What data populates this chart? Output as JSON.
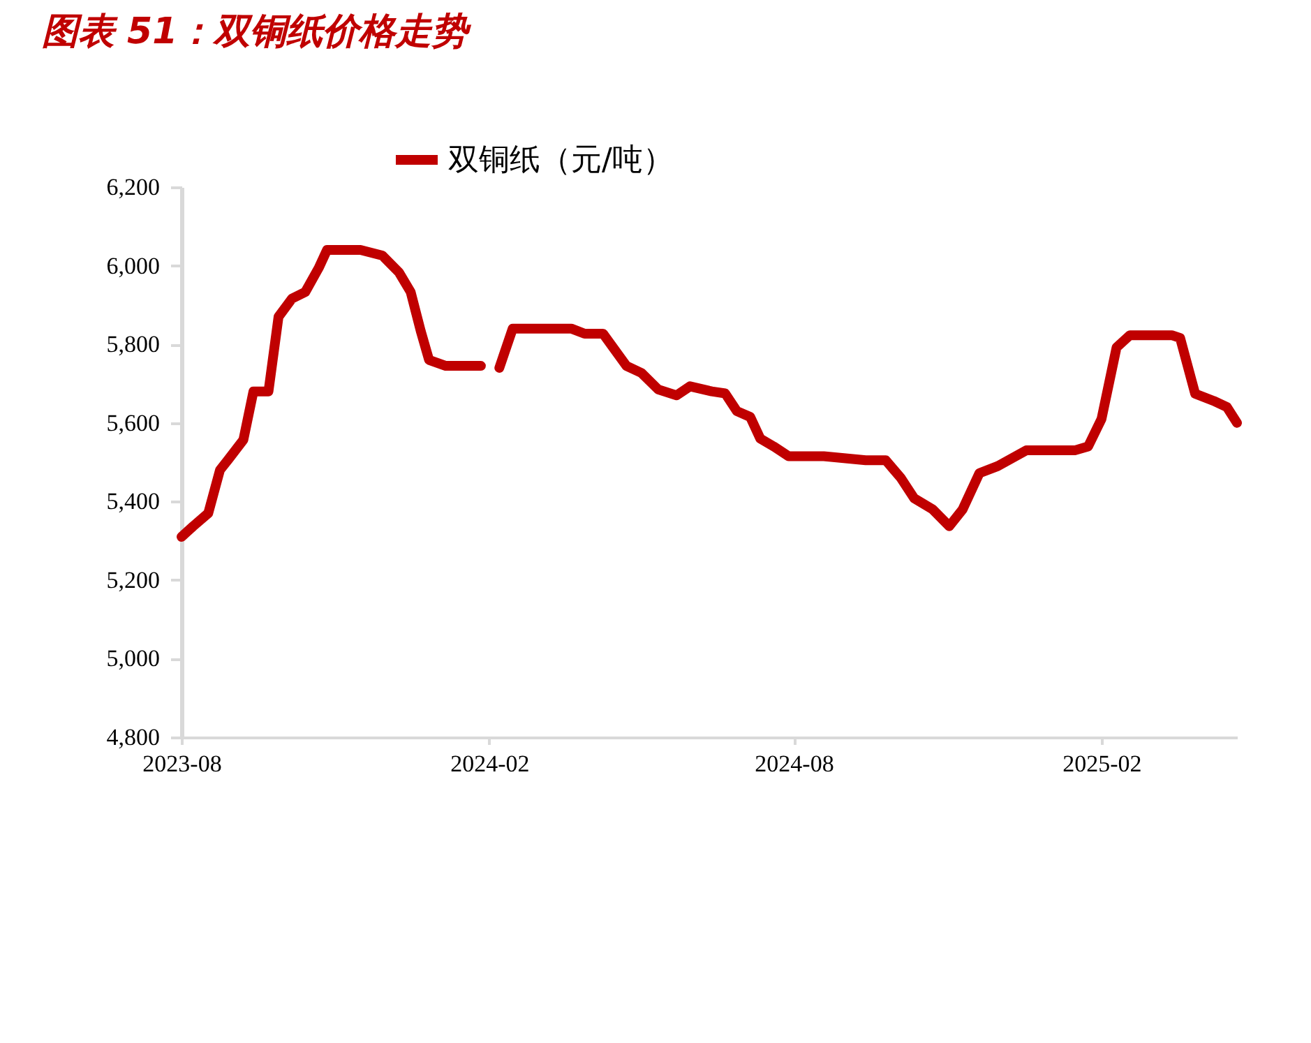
{
  "chart_data": {
    "type": "line",
    "title": "图表 51：双铜纸价格走势",
    "x": [
      "2023-08-01",
      "2023-08-08",
      "2023-08-17",
      "2023-08-24",
      "2023-08-29",
      "2023-09-07",
      "2023-09-13",
      "2023-09-22",
      "2023-09-28",
      "2023-10-06",
      "2023-10-14",
      "2023-10-22",
      "2023-10-27",
      "2023-11-16",
      "2023-11-29",
      "2023-12-09",
      "2023-12-16",
      "2023-12-22",
      "2023-12-27",
      "2024-01-06",
      "2024-01-27",
      "2024-02-01",
      "2024-02-07",
      "2024-02-15",
      "2024-03-04",
      "2024-03-21",
      "2024-03-29",
      "2024-04-09",
      "2024-04-23",
      "2024-05-02",
      "2024-05-12",
      "2024-05-23",
      "2024-05-31",
      "2024-06-13",
      "2024-06-21",
      "2024-06-28",
      "2024-07-06",
      "2024-07-12",
      "2024-07-20",
      "2024-07-29",
      "2024-08-19",
      "2024-09-13",
      "2024-09-25",
      "2024-10-04",
      "2024-10-12",
      "2024-10-23",
      "2024-11-02",
      "2024-11-10",
      "2024-11-20",
      "2024-12-01",
      "2024-12-18",
      "2025-01-16",
      "2025-01-24",
      "2025-02-01",
      "2025-02-10",
      "2025-02-18",
      "2025-03-15",
      "2025-03-20",
      "2025-03-29",
      "2025-04-09",
      "2025-04-17",
      "2025-04-23"
    ],
    "series": [
      {
        "name": "双铜纸（元/吨）",
        "color": "#c00000",
        "values": [
          5310,
          5337,
          5370,
          5480,
          5507,
          5557,
          5680,
          5680,
          5870,
          5916,
          5933,
          5994,
          6040,
          6040,
          6026,
          5983,
          5933,
          5834,
          5760,
          5745,
          5745,
          null,
          5740,
          5840,
          5840,
          5840,
          5827,
          5827,
          5745,
          5727,
          5685,
          5670,
          5693,
          5680,
          5675,
          5630,
          5615,
          5560,
          5540,
          5515,
          5515,
          5505,
          5505,
          5460,
          5408,
          5380,
          5337,
          5380,
          5472,
          5490,
          5530,
          5530,
          5540,
          5610,
          5792,
          5823,
          5823,
          5816,
          5674,
          5656,
          5640,
          5600
        ]
      }
    ],
    "xlim": [
      "2023-08-01",
      "2025-04-23"
    ],
    "xticks": [
      "2023-08",
      "2024-02",
      "2024-08",
      "2025-02"
    ],
    "ylim": [
      4800,
      6200
    ],
    "yticks": [
      {
        "value": 4800,
        "label": "4,800"
      },
      {
        "value": 5000,
        "label": "5,000"
      },
      {
        "value": 5200,
        "label": "5,200"
      },
      {
        "value": 5400,
        "label": "5,400"
      },
      {
        "value": 5600,
        "label": "5,600"
      },
      {
        "value": 5800,
        "label": "5,800"
      },
      {
        "value": 6000,
        "label": "6,000"
      },
      {
        "value": 6200,
        "label": "6,200"
      }
    ],
    "grid": false,
    "legend": "top",
    "marker": "none",
    "line_style": "solid"
  }
}
